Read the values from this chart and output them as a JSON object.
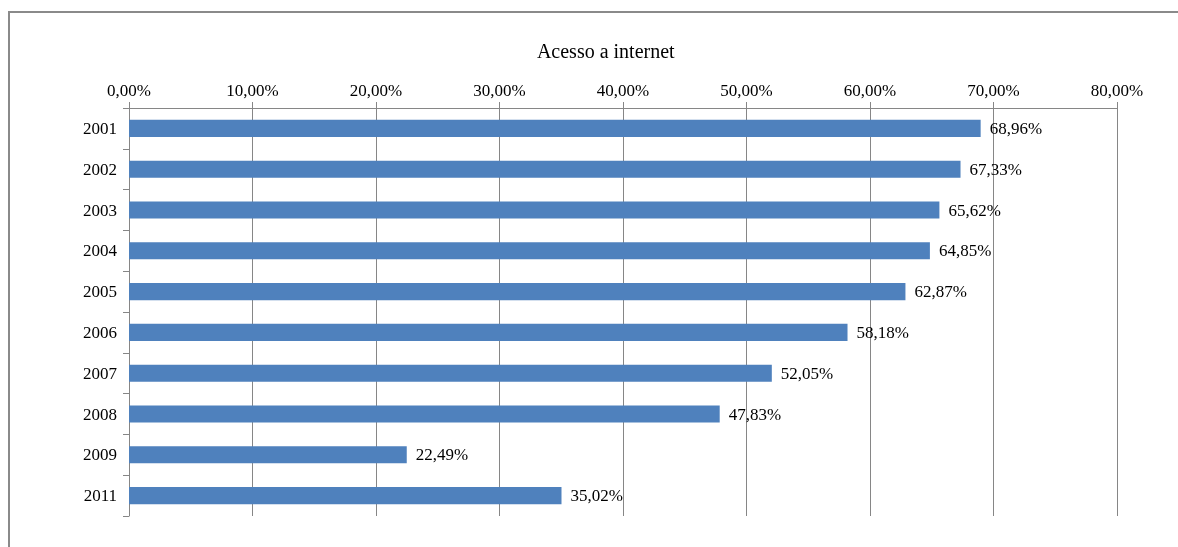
{
  "chart_data": {
    "type": "bar",
    "orientation": "horizontal",
    "title": "Acesso a internet",
    "categories": [
      "2001",
      "2002",
      "2003",
      "2004",
      "2005",
      "2006",
      "2007",
      "2008",
      "2009",
      "2011"
    ],
    "values": [
      68.96,
      67.33,
      65.62,
      64.85,
      62.87,
      58.18,
      52.05,
      47.83,
      22.49,
      35.02
    ],
    "value_labels": [
      "68,96%",
      "67,33%",
      "65,62%",
      "64,85%",
      "62,87%",
      "58,18%",
      "52,05%",
      "47,83%",
      "22,49%",
      "35,02%"
    ],
    "color": "#4f81bd",
    "xlim": [
      0,
      80
    ],
    "xticks": [
      {
        "value": 0,
        "label": "0,00%"
      },
      {
        "value": 10,
        "label": "10,00%"
      },
      {
        "value": 20,
        "label": "20,00%"
      },
      {
        "value": 30,
        "label": "30,00%"
      },
      {
        "value": 40,
        "label": "40,00%"
      },
      {
        "value": 50,
        "label": "50,00%"
      },
      {
        "value": 60,
        "label": "60,00%"
      },
      {
        "value": 70,
        "label": "70,00%"
      },
      {
        "value": 80,
        "label": "80,00%"
      }
    ],
    "grid": "x"
  }
}
